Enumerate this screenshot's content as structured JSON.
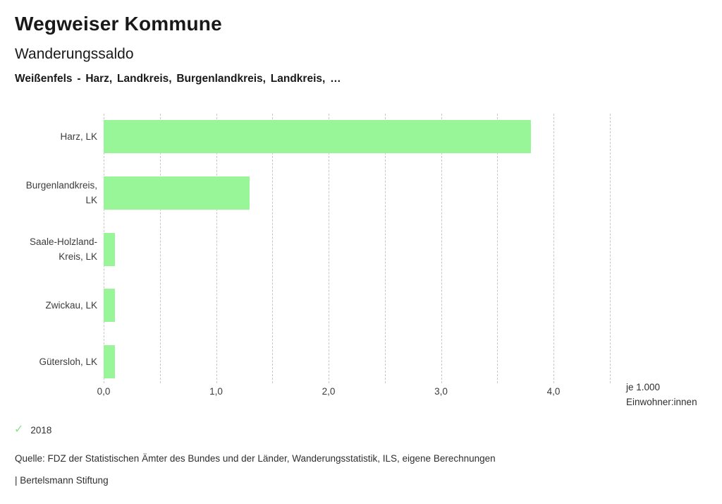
{
  "header": {
    "title": "Wegweiser Kommune",
    "subtitle": "Wanderungssaldo",
    "context": "Weißenfels - Harz, Landkreis, Burgenlandkreis, Landkreis, …"
  },
  "chart_data": {
    "type": "bar",
    "orientation": "horizontal",
    "title": "Wanderungssaldo",
    "categories": [
      "Harz, LK",
      "Burgenlandkreis, LK",
      "Saale-Holzland-Kreis, LK",
      "Zwickau, LK",
      "Gütersloh, LK"
    ],
    "category_label_lines": [
      [
        "Harz, LK"
      ],
      [
        "Burgenlandkreis,",
        "LK"
      ],
      [
        "Saale-Holzland-",
        "Kreis, LK"
      ],
      [
        "Zwickau, LK"
      ],
      [
        "Gütersloh, LK"
      ]
    ],
    "series": [
      {
        "name": "2018",
        "values": [
          3.8,
          1.3,
          0.1,
          0.1,
          0.1
        ]
      }
    ],
    "xlabel": "je 1.000 Einwohner:innen",
    "unit_label_lines": [
      "je 1.000",
      "Einwohner:innen"
    ],
    "x_ticks": [
      "0,0",
      "1,0",
      "2,0",
      "3,0",
      "4,0"
    ],
    "x_tick_values": [
      0,
      1,
      2,
      3,
      4
    ],
    "xlim": [
      0,
      4.5
    ],
    "gridline_step": 0.5,
    "grid": true,
    "bar_color": "#98f598",
    "gridline_color": "#c7c7c7",
    "legend_position": "bottom-left"
  },
  "legend": {
    "check_icon": "✓",
    "check_color": "#8ce08c",
    "year": "2018"
  },
  "footer": {
    "source": "Quelle: FDZ der Statistischen Ämter des Bundes und der Länder, Wanderungsstatistik, ILS, eigene Berechnungen",
    "brand": "| Bertelsmann Stiftung"
  }
}
